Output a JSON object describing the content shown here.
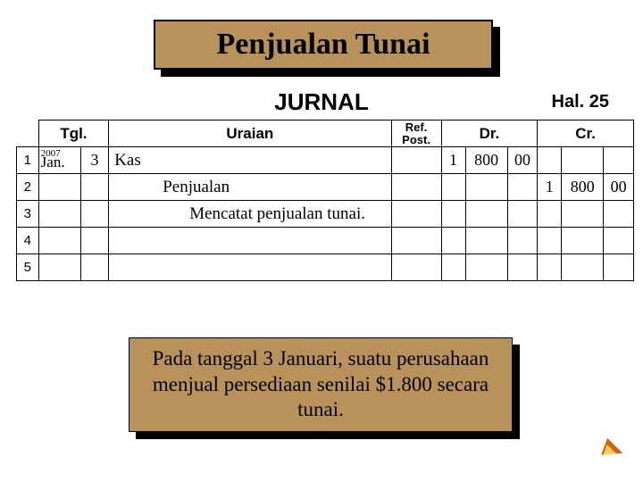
{
  "title": "Penjualan Tunai",
  "journal_heading": "JURNAL",
  "page_label": "Hal. 25",
  "headers": {
    "tgl": "Tgl.",
    "uraian": "Uraian",
    "ref": "Ref. Post.",
    "dr": "Dr.",
    "cr": "Cr."
  },
  "rows": {
    "r1": {
      "num": "1",
      "year": "2007",
      "month": "Jan.",
      "day": "3",
      "desc": "Kas",
      "dr1": "1",
      "dr2": "800",
      "dr3": "00",
      "cr1": "",
      "cr2": "",
      "cr3": ""
    },
    "r2": {
      "num": "2",
      "desc": "Penjualan",
      "dr1": "",
      "dr2": "",
      "dr3": "",
      "cr1": "1",
      "cr2": "800",
      "cr3": "00"
    },
    "r3": {
      "num": "3",
      "desc": "Mencatat penjualan tunai."
    },
    "r4": {
      "num": "4"
    },
    "r5": {
      "num": "5"
    }
  },
  "note": "Pada tanggal 3 Januari, suatu perusahaan menjual persediaan senilai $1.800 secara tunai.",
  "colors": {
    "accent": "#b8925a",
    "arrow": "#cc6600"
  }
}
